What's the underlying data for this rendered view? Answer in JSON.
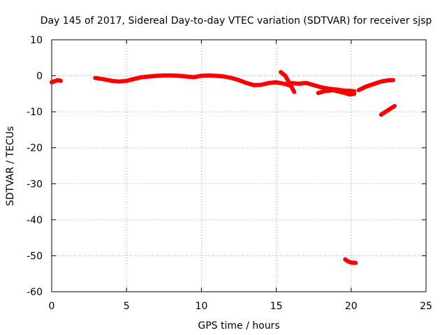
{
  "chart_data": {
    "type": "scatter",
    "title": "Day 145 of 2017, Sidereal Day-to-day VTEC variation (SDTVAR) for receiver sjsp",
    "xlabel": "GPS time / hours",
    "ylabel": "SDTVAR / TECUs",
    "xlim": [
      0,
      25
    ],
    "ylim": [
      -60,
      10
    ],
    "xticks": [
      0,
      5,
      10,
      15,
      20,
      25
    ],
    "yticks": [
      10,
      0,
      -10,
      -20,
      -30,
      -40,
      -50,
      -60
    ],
    "grid": true,
    "series": [
      {
        "name": "SDTVAR",
        "color": "#ff0000",
        "segments": [
          [
            [
              0.0,
              -1.8
            ],
            [
              0.2,
              -1.5
            ],
            [
              0.4,
              -1.2
            ],
            [
              0.6,
              -1.4
            ]
          ],
          [
            [
              2.9,
              -0.6
            ],
            [
              3.5,
              -1.0
            ],
            [
              4.0,
              -1.4
            ],
            [
              4.5,
              -1.6
            ],
            [
              5.0,
              -1.4
            ],
            [
              5.5,
              -0.9
            ],
            [
              6.0,
              -0.4
            ],
            [
              6.5,
              -0.2
            ],
            [
              7.0,
              0.0
            ],
            [
              7.5,
              0.1
            ],
            [
              8.0,
              0.1
            ],
            [
              8.5,
              0.0
            ],
            [
              9.0,
              -0.2
            ],
            [
              9.5,
              -0.4
            ],
            [
              10.0,
              0.0
            ],
            [
              10.5,
              0.1
            ],
            [
              11.0,
              0.0
            ],
            [
              11.5,
              -0.2
            ],
            [
              12.0,
              -0.6
            ],
            [
              12.5,
              -1.2
            ],
            [
              13.0,
              -2.0
            ],
            [
              13.5,
              -2.6
            ],
            [
              14.0,
              -2.5
            ],
            [
              14.5,
              -2.0
            ],
            [
              15.0,
              -1.8
            ],
            [
              15.5,
              -2.2
            ],
            [
              16.0,
              -2.8
            ]
          ],
          [
            [
              15.3,
              1.0
            ],
            [
              15.6,
              0.0
            ],
            [
              15.8,
              -1.5
            ],
            [
              16.0,
              -3.0
            ],
            [
              16.2,
              -4.5
            ]
          ],
          [
            [
              15.8,
              -2.0
            ],
            [
              16.5,
              -2.2
            ],
            [
              17.0,
              -2.0
            ],
            [
              17.5,
              -2.6
            ],
            [
              18.0,
              -3.2
            ],
            [
              18.5,
              -3.6
            ],
            [
              19.0,
              -3.8
            ],
            [
              19.5,
              -4.1
            ],
            [
              20.0,
              -4.2
            ],
            [
              20.2,
              -4.3
            ]
          ],
          [
            [
              17.8,
              -4.8
            ],
            [
              18.2,
              -4.3
            ],
            [
              18.8,
              -4.0
            ],
            [
              19.4,
              -4.6
            ],
            [
              19.9,
              -5.2
            ],
            [
              20.2,
              -5.0
            ]
          ],
          [
            [
              20.5,
              -4.0
            ],
            [
              21.0,
              -3.0
            ],
            [
              21.5,
              -2.3
            ],
            [
              22.0,
              -1.6
            ],
            [
              22.4,
              -1.3
            ],
            [
              22.8,
              -1.2
            ]
          ],
          [
            [
              22.0,
              -10.8
            ],
            [
              22.3,
              -10.0
            ],
            [
              22.6,
              -9.2
            ],
            [
              22.9,
              -8.4
            ]
          ],
          [
            [
              19.6,
              -51.0
            ],
            [
              19.8,
              -51.6
            ],
            [
              20.0,
              -51.9
            ],
            [
              20.3,
              -52.0
            ]
          ]
        ]
      }
    ]
  }
}
